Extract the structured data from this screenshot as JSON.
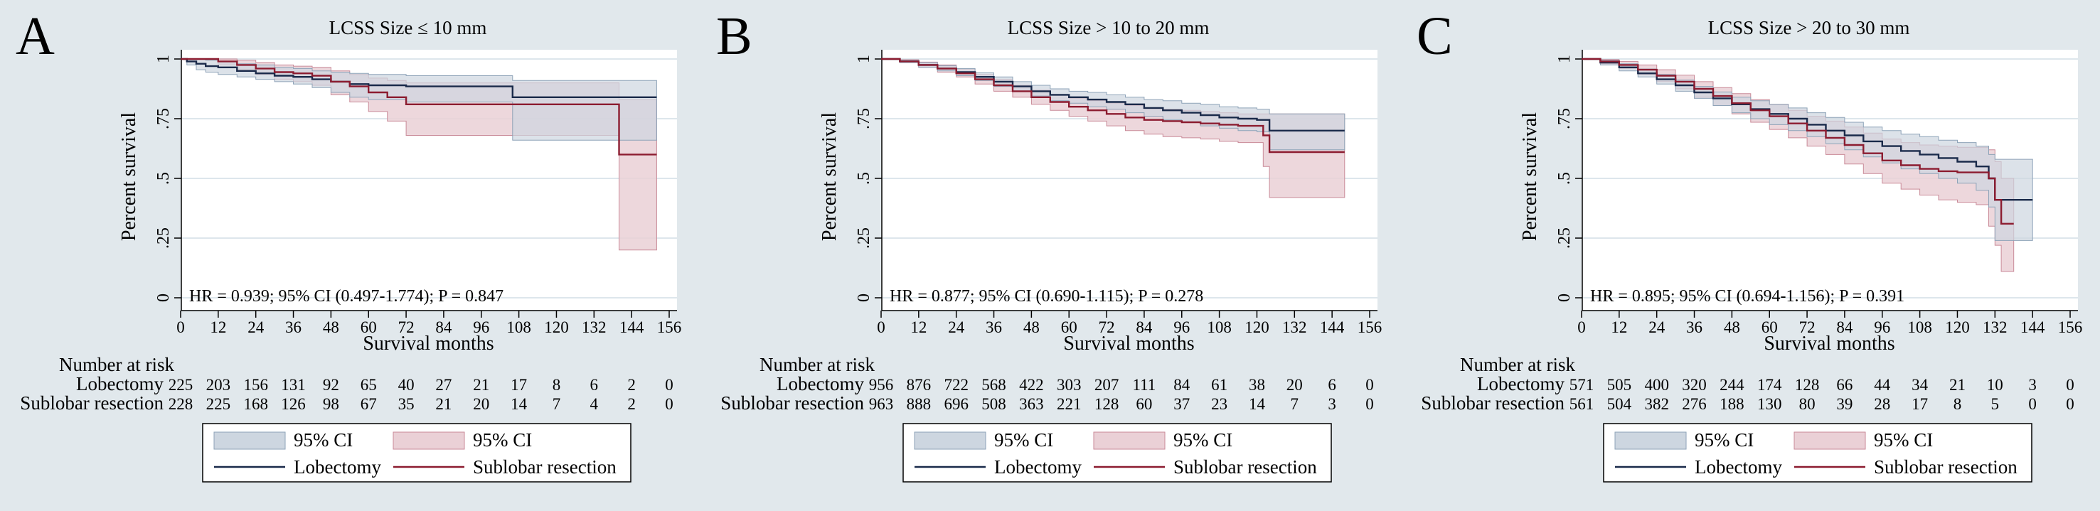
{
  "figure": {
    "panels": [
      {
        "letter": "A",
        "title": "LCSS Size ≤ 10 mm",
        "hr_text": "HR = 0.939; 95% CI (0.497-1.774); P = 0.847"
      },
      {
        "letter": "B",
        "title": "LCSS Size > 10 to 20 mm",
        "hr_text": "HR = 0.877; 95% CI (0.690-1.115); P = 0.278"
      },
      {
        "letter": "C",
        "title": "LCSS Size > 20 to 30 mm",
        "hr_text": "HR = 0.895; 95% CI (0.694-1.156); P = 0.391"
      }
    ],
    "risk_table_title": "Number at risk",
    "legend": {
      "ci_label": "95% CI",
      "group1": "Lobectomy",
      "group2": "Sublobar resection"
    },
    "colors": {
      "background": "#e1e8ec",
      "plot_bg": "#ffffff",
      "lobectomy_line": "#1a2a4a",
      "lobectomy_ci": "#cdd6e0",
      "sublobar_line": "#8c1c30",
      "sublobar_ci": "#ead0d6",
      "grid": "#dde6ec"
    }
  },
  "chart_data": [
    {
      "type": "line",
      "title": "LCSS Size ≤ 10 mm",
      "xlabel": "Survival months",
      "ylabel": "Percent survival",
      "xlim": [
        0,
        156
      ],
      "ylim": [
        0,
        1
      ],
      "xticks": [
        0,
        12,
        24,
        36,
        48,
        60,
        72,
        84,
        96,
        108,
        120,
        132,
        144,
        156
      ],
      "yticks": [
        0,
        0.25,
        0.5,
        0.75,
        1
      ],
      "ytick_labels": [
        "0",
        ".25",
        ".5",
        ".75",
        "1"
      ],
      "annotation": "HR = 0.939; 95% CI (0.497-1.774); P = 0.847",
      "series": [
        {
          "name": "Lobectomy",
          "x": [
            0,
            2,
            5,
            8,
            12,
            18,
            24,
            30,
            36,
            42,
            48,
            54,
            60,
            66,
            72,
            84,
            96,
            106,
            120,
            132,
            144,
            152
          ],
          "y": [
            1,
            0.99,
            0.98,
            0.97,
            0.965,
            0.95,
            0.94,
            0.93,
            0.925,
            0.915,
            0.905,
            0.895,
            0.89,
            0.89,
            0.885,
            0.885,
            0.885,
            0.84,
            0.84,
            0.84,
            0.84,
            0.84
          ],
          "ci_low": [
            1,
            0.975,
            0.955,
            0.945,
            0.935,
            0.925,
            0.915,
            0.905,
            0.895,
            0.88,
            0.86,
            0.84,
            0.83,
            0.83,
            0.82,
            0.82,
            0.82,
            0.66,
            0.66,
            0.66,
            0.66,
            0.66
          ],
          "ci_high": [
            1,
            1,
            1,
            0.995,
            0.99,
            0.98,
            0.975,
            0.965,
            0.96,
            0.95,
            0.945,
            0.94,
            0.935,
            0.935,
            0.93,
            0.93,
            0.93,
            0.91,
            0.91,
            0.91,
            0.91,
            0.91
          ]
        },
        {
          "name": "Sublobar resection",
          "x": [
            0,
            6,
            12,
            18,
            24,
            30,
            36,
            42,
            48,
            54,
            60,
            66,
            72,
            84,
            96,
            108,
            120,
            132,
            137,
            140,
            152
          ],
          "y": [
            1,
            1,
            0.99,
            0.975,
            0.96,
            0.945,
            0.94,
            0.93,
            0.905,
            0.885,
            0.86,
            0.84,
            0.81,
            0.81,
            0.81,
            0.81,
            0.81,
            0.81,
            0.81,
            0.6,
            0.6
          ],
          "ci_low": [
            1,
            1,
            0.975,
            0.955,
            0.935,
            0.915,
            0.905,
            0.89,
            0.85,
            0.82,
            0.78,
            0.74,
            0.68,
            0.68,
            0.68,
            0.68,
            0.68,
            0.68,
            0.68,
            0.2,
            0.2
          ],
          "ci_high": [
            1,
            1,
            1,
            0.995,
            0.985,
            0.975,
            0.97,
            0.965,
            0.95,
            0.935,
            0.92,
            0.91,
            0.9,
            0.9,
            0.9,
            0.9,
            0.9,
            0.9,
            0.9,
            0.83,
            0.83
          ]
        }
      ],
      "risk_table": {
        "times": [
          0,
          12,
          24,
          36,
          48,
          60,
          72,
          84,
          96,
          108,
          120,
          132,
          144,
          156
        ],
        "rows": [
          {
            "label": "Lobectomy",
            "counts": [
              225,
              203,
              156,
              131,
              92,
              65,
              40,
              27,
              21,
              17,
              8,
              6,
              2,
              0
            ]
          },
          {
            "label": "Sublobar resection",
            "counts": [
              228,
              225,
              168,
              126,
              98,
              67,
              35,
              21,
              20,
              14,
              7,
              4,
              2,
              0
            ]
          }
        ]
      }
    },
    {
      "type": "line",
      "title": "LCSS Size > 10 to 20 mm",
      "xlabel": "Survival months",
      "ylabel": "Percent survival",
      "xlim": [
        0,
        156
      ],
      "ylim": [
        0,
        1
      ],
      "xticks": [
        0,
        12,
        24,
        36,
        48,
        60,
        72,
        84,
        96,
        108,
        120,
        132,
        144,
        156
      ],
      "yticks": [
        0,
        0.25,
        0.5,
        0.75,
        1
      ],
      "ytick_labels": [
        "0",
        ".25",
        ".5",
        ".75",
        "1"
      ],
      "annotation": "HR = 0.877; 95% CI (0.690-1.115); P = 0.278",
      "series": [
        {
          "name": "Lobectomy",
          "x": [
            0,
            6,
            12,
            18,
            24,
            30,
            36,
            42,
            48,
            54,
            60,
            66,
            72,
            78,
            84,
            90,
            96,
            102,
            108,
            114,
            120,
            124,
            132,
            144,
            148
          ],
          "y": [
            1,
            0.99,
            0.975,
            0.96,
            0.945,
            0.925,
            0.905,
            0.885,
            0.865,
            0.85,
            0.84,
            0.83,
            0.82,
            0.81,
            0.795,
            0.785,
            0.775,
            0.765,
            0.755,
            0.75,
            0.745,
            0.7,
            0.7,
            0.7,
            0.7
          ],
          "ci_low": [
            1,
            0.985,
            0.965,
            0.95,
            0.93,
            0.91,
            0.885,
            0.865,
            0.845,
            0.825,
            0.815,
            0.8,
            0.79,
            0.775,
            0.76,
            0.745,
            0.735,
            0.72,
            0.71,
            0.7,
            0.695,
            0.62,
            0.62,
            0.62,
            0.62
          ],
          "ci_high": [
            1,
            0.995,
            0.985,
            0.972,
            0.96,
            0.942,
            0.925,
            0.905,
            0.89,
            0.875,
            0.865,
            0.86,
            0.85,
            0.84,
            0.83,
            0.825,
            0.815,
            0.81,
            0.8,
            0.795,
            0.79,
            0.77,
            0.77,
            0.77,
            0.77
          ]
        },
        {
          "name": "Sublobar resection",
          "x": [
            0,
            6,
            12,
            18,
            24,
            30,
            36,
            42,
            48,
            54,
            60,
            66,
            72,
            78,
            84,
            90,
            96,
            102,
            108,
            114,
            120,
            122,
            124,
            132,
            144,
            148
          ],
          "y": [
            1,
            0.99,
            0.975,
            0.96,
            0.94,
            0.915,
            0.89,
            0.865,
            0.84,
            0.82,
            0.8,
            0.785,
            0.77,
            0.755,
            0.745,
            0.74,
            0.735,
            0.73,
            0.725,
            0.72,
            0.72,
            0.68,
            0.61,
            0.61,
            0.61,
            0.61
          ],
          "ci_low": [
            1,
            0.985,
            0.965,
            0.945,
            0.925,
            0.895,
            0.865,
            0.84,
            0.81,
            0.785,
            0.76,
            0.74,
            0.72,
            0.7,
            0.685,
            0.675,
            0.67,
            0.665,
            0.655,
            0.65,
            0.65,
            0.55,
            0.42,
            0.42,
            0.42,
            0.42
          ],
          "ci_high": [
            1,
            0.997,
            0.987,
            0.975,
            0.958,
            0.935,
            0.915,
            0.89,
            0.87,
            0.85,
            0.835,
            0.825,
            0.815,
            0.805,
            0.795,
            0.79,
            0.785,
            0.78,
            0.775,
            0.77,
            0.77,
            0.77,
            0.77,
            0.77,
            0.77,
            0.77
          ]
        }
      ],
      "risk_table": {
        "times": [
          0,
          12,
          24,
          36,
          48,
          60,
          72,
          84,
          96,
          108,
          120,
          132,
          144,
          156
        ],
        "rows": [
          {
            "label": "Lobectomy",
            "counts": [
              956,
              876,
              722,
              568,
              422,
              303,
              207,
              111,
              84,
              61,
              38,
              20,
              6,
              0
            ]
          },
          {
            "label": "Sublobar resection",
            "counts": [
              963,
              888,
              696,
              508,
              363,
              221,
              128,
              60,
              37,
              23,
              14,
              7,
              3,
              0
            ]
          }
        ]
      }
    },
    {
      "type": "line",
      "title": "LCSS Size > 20 to 30 mm",
      "xlabel": "Survival months",
      "ylabel": "Percent survival",
      "xlim": [
        0,
        156
      ],
      "ylim": [
        0,
        1
      ],
      "xticks": [
        0,
        12,
        24,
        36,
        48,
        60,
        72,
        84,
        96,
        108,
        120,
        132,
        144,
        156
      ],
      "yticks": [
        0,
        0.25,
        0.5,
        0.75,
        1
      ],
      "ytick_labels": [
        "0",
        ".25",
        ".5",
        ".75",
        "1"
      ],
      "annotation": "HR = 0.895; 95% CI (0.694-1.156); P = 0.391",
      "series": [
        {
          "name": "Lobectomy",
          "x": [
            0,
            6,
            12,
            18,
            24,
            30,
            36,
            42,
            48,
            54,
            60,
            66,
            72,
            78,
            84,
            90,
            96,
            102,
            108,
            114,
            120,
            126,
            130,
            132,
            144
          ],
          "y": [
            1,
            0.985,
            0.965,
            0.94,
            0.915,
            0.89,
            0.86,
            0.835,
            0.81,
            0.79,
            0.77,
            0.75,
            0.725,
            0.7,
            0.68,
            0.655,
            0.635,
            0.615,
            0.6,
            0.585,
            0.57,
            0.55,
            0.5,
            0.41,
            0.41
          ],
          "ci_low": [
            1,
            0.975,
            0.95,
            0.925,
            0.895,
            0.865,
            0.835,
            0.805,
            0.775,
            0.75,
            0.725,
            0.7,
            0.675,
            0.645,
            0.62,
            0.59,
            0.565,
            0.54,
            0.52,
            0.5,
            0.48,
            0.45,
            0.38,
            0.24,
            0.24
          ],
          "ci_high": [
            1,
            0.995,
            0.98,
            0.958,
            0.935,
            0.912,
            0.885,
            0.862,
            0.84,
            0.825,
            0.81,
            0.795,
            0.775,
            0.755,
            0.735,
            0.715,
            0.7,
            0.685,
            0.675,
            0.66,
            0.65,
            0.635,
            0.6,
            0.58,
            0.58
          ]
        },
        {
          "name": "Sublobar resection",
          "x": [
            0,
            6,
            12,
            18,
            24,
            30,
            36,
            42,
            48,
            54,
            60,
            66,
            72,
            78,
            84,
            90,
            96,
            102,
            108,
            114,
            120,
            126,
            130,
            132,
            134,
            138
          ],
          "y": [
            1,
            0.99,
            0.975,
            0.955,
            0.93,
            0.905,
            0.875,
            0.845,
            0.815,
            0.785,
            0.76,
            0.73,
            0.7,
            0.67,
            0.64,
            0.605,
            0.575,
            0.555,
            0.54,
            0.53,
            0.525,
            0.525,
            0.5,
            0.41,
            0.31,
            0.31
          ],
          "ci_low": [
            1,
            0.98,
            0.96,
            0.935,
            0.905,
            0.875,
            0.84,
            0.805,
            0.77,
            0.735,
            0.705,
            0.67,
            0.635,
            0.6,
            0.56,
            0.52,
            0.48,
            0.455,
            0.43,
            0.41,
            0.4,
            0.39,
            0.3,
            0.22,
            0.11,
            0.11
          ],
          "ci_high": [
            1,
            0.998,
            0.99,
            0.975,
            0.955,
            0.932,
            0.905,
            0.88,
            0.855,
            0.83,
            0.81,
            0.785,
            0.76,
            0.74,
            0.715,
            0.69,
            0.665,
            0.65,
            0.64,
            0.635,
            0.63,
            0.63,
            0.62,
            0.57,
            0.5,
            0.5
          ]
        }
      ],
      "risk_table": {
        "times": [
          0,
          12,
          24,
          36,
          48,
          60,
          72,
          84,
          96,
          108,
          120,
          132,
          144,
          156
        ],
        "rows": [
          {
            "label": "Lobectomy",
            "counts": [
              571,
              505,
              400,
              320,
              244,
              174,
              128,
              66,
              44,
              34,
              21,
              10,
              3,
              0
            ]
          },
          {
            "label": "Sublobar resection",
            "counts": [
              561,
              504,
              382,
              276,
              188,
              130,
              80,
              39,
              28,
              17,
              8,
              5,
              0,
              0
            ]
          }
        ]
      }
    }
  ]
}
